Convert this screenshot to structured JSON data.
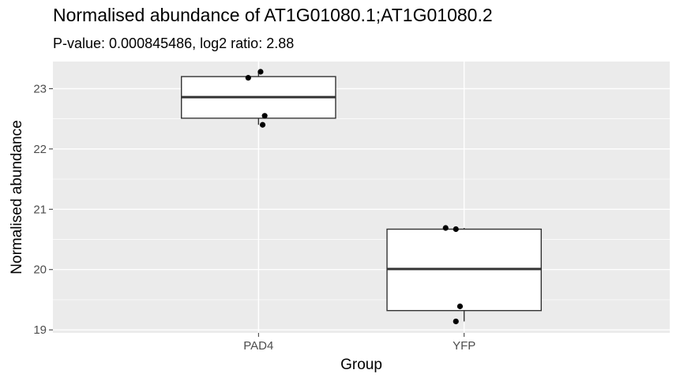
{
  "chart_data": {
    "type": "boxplot",
    "title": "Normalised abundance of AT1G01080.1;AT1G01080.2",
    "subtitle": "P-value: 0.000845486, log2 ratio: 2.88",
    "xlabel": "Group",
    "ylabel": "Normalised abundance",
    "categories": [
      "PAD4",
      "YFP"
    ],
    "yticks": [
      19,
      20,
      21,
      22,
      23
    ],
    "ylim": [
      18.95,
      23.45
    ],
    "grid": true,
    "boxes": [
      {
        "category": "PAD4",
        "q1": 22.51,
        "median": 22.86,
        "q3": 23.2,
        "whisker_low": 22.4,
        "whisker_high": 23.28
      },
      {
        "category": "YFP",
        "q1": 19.32,
        "median": 20.01,
        "q3": 20.67,
        "whisker_low": 19.14,
        "whisker_high": 20.69
      }
    ],
    "points": [
      {
        "category": "PAD4",
        "x_offset": -0.05,
        "y": 23.18
      },
      {
        "category": "PAD4",
        "x_offset": 0.01,
        "y": 23.28
      },
      {
        "category": "PAD4",
        "x_offset": 0.03,
        "y": 22.55
      },
      {
        "category": "PAD4",
        "x_offset": 0.02,
        "y": 22.4
      },
      {
        "category": "YFP",
        "x_offset": -0.09,
        "y": 20.69
      },
      {
        "category": "YFP",
        "x_offset": -0.04,
        "y": 20.67
      },
      {
        "category": "YFP",
        "x_offset": -0.02,
        "y": 19.39
      },
      {
        "category": "YFP",
        "x_offset": -0.04,
        "y": 19.14
      }
    ],
    "colors": {
      "panel": "#ebebeb",
      "grid": "#ffffff",
      "box_line": "#333333",
      "point": "#000000",
      "tick_text": "#4d4d4d"
    }
  }
}
